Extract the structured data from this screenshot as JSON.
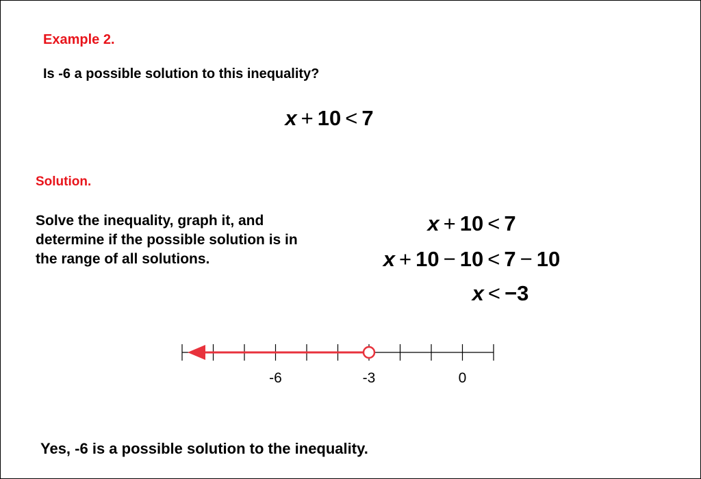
{
  "example_label": "Example 2.",
  "question": "Is -6 a possible solution to this inequality?",
  "inequality": {
    "var": "x",
    "op1": "+",
    "n1": "10",
    "rel": "<",
    "n2": "7"
  },
  "solution_label": "Solution.",
  "instructions": "Solve the inequality, graph it, and determine if the possible solution is in the range of all solutions.",
  "steps": {
    "step1": {
      "var": "x",
      "op1": "+",
      "n1": "10",
      "rel": "<",
      "rhs": "7"
    },
    "step2": {
      "var": "x",
      "op1": "+",
      "n1": "10",
      "op2": "−",
      "n2": "10",
      "rel": "<",
      "rhs1": "7",
      "op3": "−",
      "rhs2": "10"
    },
    "step3": {
      "var": "x",
      "rel": "<",
      "rhs": "−3"
    }
  },
  "number_line": {
    "min": -9,
    "max": 1,
    "tick_step": 1,
    "labels": [
      {
        "value": -6,
        "text": "-6"
      },
      {
        "value": -3,
        "text": "-3"
      },
      {
        "value": 0,
        "text": "0"
      }
    ],
    "open_point": -3,
    "shaded_direction": "left",
    "shade_color": "#e8323c",
    "axis_color": "#000000"
  },
  "answer": "Yes, -6 is a possible solution to the inequality."
}
